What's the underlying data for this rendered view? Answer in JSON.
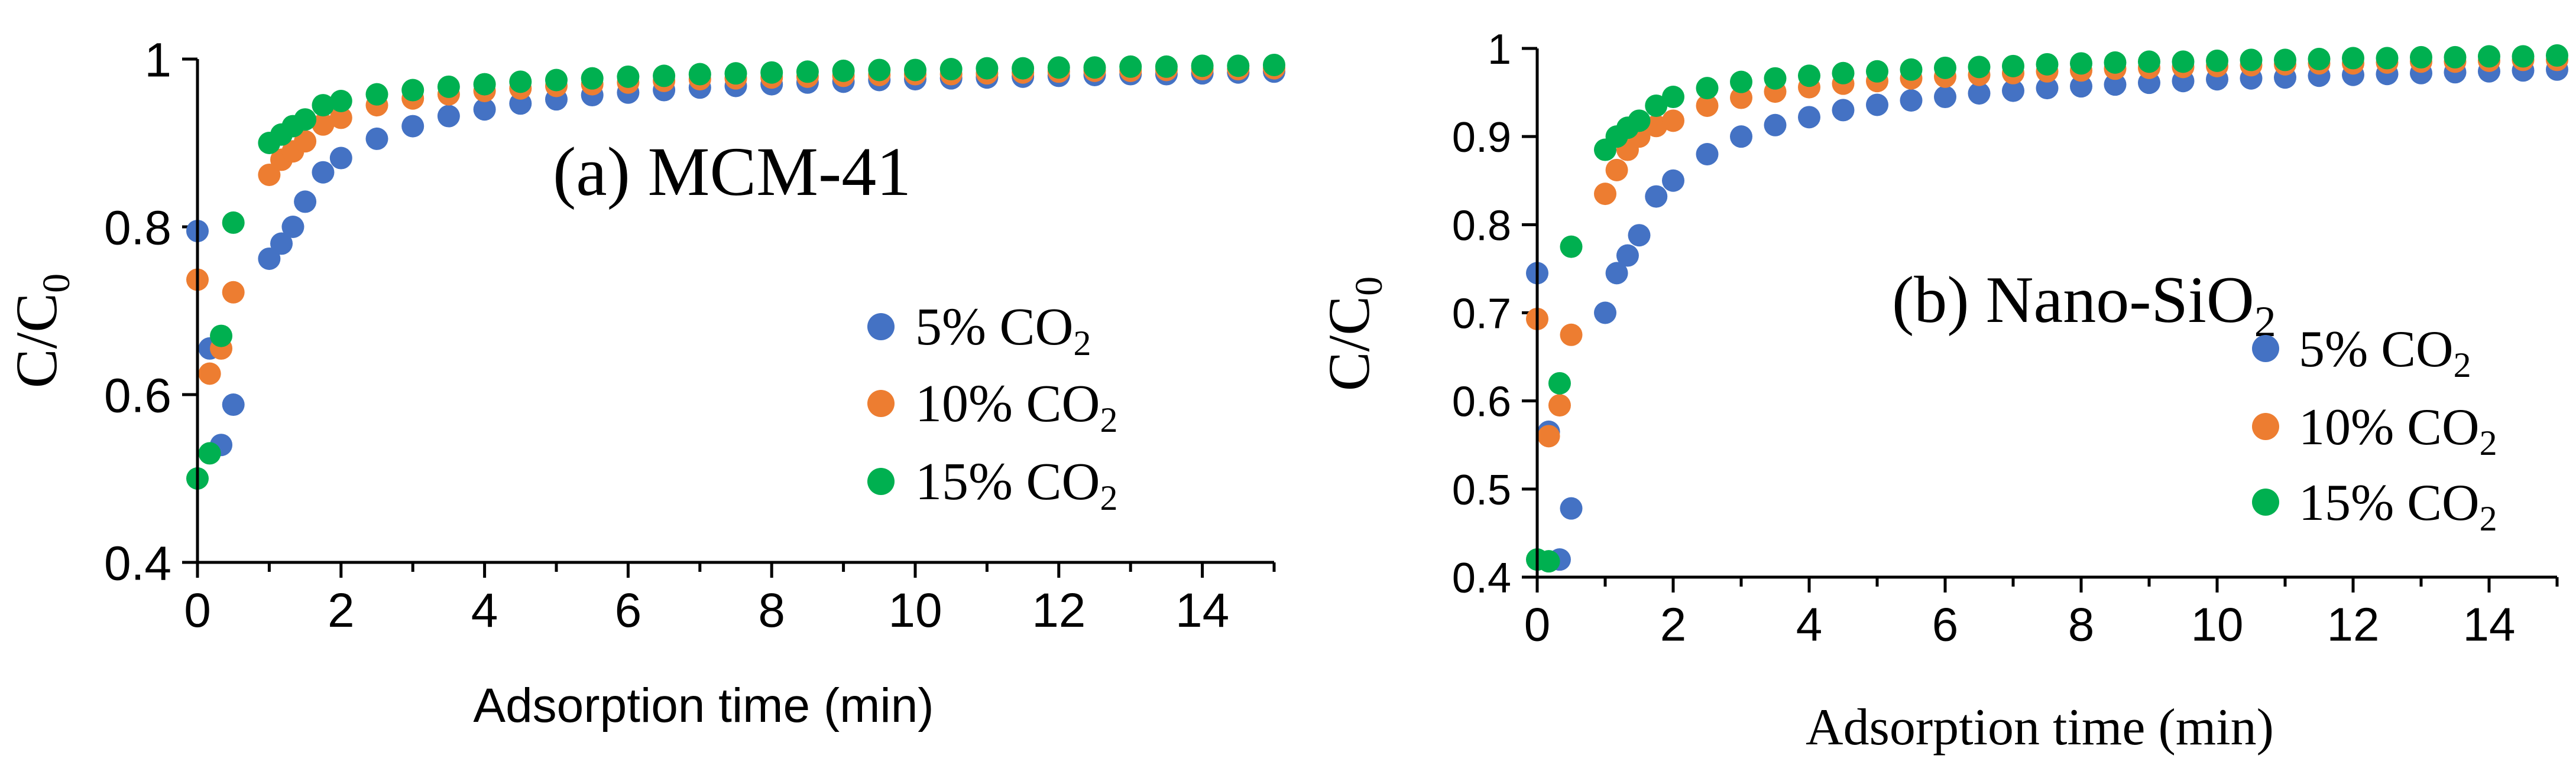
{
  "chart_data": [
    {
      "type": "scatter",
      "title": "(a) MCM-41",
      "xlabel": "Adsorption time (min)",
      "ylabel": "C/C0",
      "xlim": [
        0,
        15
      ],
      "ylim": [
        0.4,
        1.0
      ],
      "xticks": [
        "0",
        "2",
        "4",
        "6",
        "8",
        "10",
        "12",
        "14"
      ],
      "yticks": [
        "0.4",
        "0.6",
        "0.8",
        "1"
      ],
      "legend_position": "right",
      "series": [
        {
          "name": "5% CO2",
          "color": "#4472C4",
          "x": [
            0.0,
            0.17,
            0.33,
            0.5,
            1.0,
            1.17,
            1.33,
            1.5,
            1.75,
            2.0,
            2.5,
            3.0,
            3.5,
            4.0,
            4.5,
            5.0,
            5.5,
            6.0,
            6.5,
            7.0,
            7.5,
            8.0,
            8.5,
            9.0,
            9.5,
            10.0,
            10.5,
            11.0,
            11.5,
            12.0,
            12.5,
            13.0,
            13.5,
            14.0,
            14.5,
            15.0
          ],
          "y": [
            0.795,
            0.655,
            0.54,
            0.588,
            0.762,
            0.78,
            0.8,
            0.83,
            0.865,
            0.882,
            0.905,
            0.92,
            0.932,
            0.94,
            0.947,
            0.952,
            0.957,
            0.96,
            0.963,
            0.966,
            0.968,
            0.97,
            0.972,
            0.973,
            0.975,
            0.976,
            0.977,
            0.978,
            0.979,
            0.98,
            0.981,
            0.982,
            0.982,
            0.983,
            0.984,
            0.985
          ]
        },
        {
          "name": "10% CO2",
          "color": "#ED7D31",
          "x": [
            0.0,
            0.17,
            0.33,
            0.5,
            1.0,
            1.17,
            1.33,
            1.5,
            1.75,
            2.0,
            2.5,
            3.0,
            3.5,
            4.0,
            4.5,
            5.0,
            5.5,
            6.0,
            6.5,
            7.0,
            7.5,
            8.0,
            8.5,
            9.0,
            9.5,
            10.0,
            10.5,
            11.0,
            11.5,
            12.0,
            12.5,
            13.0,
            13.5,
            14.0,
            14.5,
            15.0
          ],
          "y": [
            0.737,
            0.625,
            0.655,
            0.722,
            0.862,
            0.88,
            0.89,
            0.902,
            0.922,
            0.93,
            0.945,
            0.953,
            0.958,
            0.962,
            0.965,
            0.968,
            0.97,
            0.972,
            0.974,
            0.976,
            0.977,
            0.978,
            0.979,
            0.98,
            0.981,
            0.982,
            0.982,
            0.983,
            0.984,
            0.985,
            0.986,
            0.986,
            0.987,
            0.988,
            0.988,
            0.989
          ]
        },
        {
          "name": "15% CO2",
          "color": "#00B050",
          "x": [
            0.0,
            0.17,
            0.33,
            0.5,
            1.0,
            1.17,
            1.33,
            1.5,
            1.75,
            2.0,
            2.5,
            3.0,
            3.5,
            4.0,
            4.5,
            5.0,
            5.5,
            6.0,
            6.5,
            7.0,
            7.5,
            8.0,
            8.5,
            9.0,
            9.5,
            10.0,
            10.5,
            11.0,
            11.5,
            12.0,
            12.5,
            13.0,
            13.5,
            14.0,
            14.5,
            15.0
          ],
          "y": [
            0.5,
            0.53,
            0.67,
            0.805,
            0.9,
            0.91,
            0.92,
            0.928,
            0.945,
            0.95,
            0.958,
            0.963,
            0.967,
            0.97,
            0.973,
            0.975,
            0.977,
            0.979,
            0.98,
            0.982,
            0.983,
            0.984,
            0.985,
            0.986,
            0.987,
            0.987,
            0.988,
            0.989,
            0.989,
            0.99,
            0.99,
            0.991,
            0.991,
            0.992,
            0.992,
            0.993
          ]
        }
      ]
    },
    {
      "type": "scatter",
      "title": "(b) Nano-SiO2",
      "xlabel": "Adsorption time (min)",
      "ylabel": "C/C0",
      "xlim": [
        0,
        15
      ],
      "ylim": [
        0.4,
        1.0
      ],
      "xticks": [
        "0",
        "2",
        "4",
        "6",
        "8",
        "10",
        "12",
        "14"
      ],
      "yticks": [
        "0.4",
        "0.5",
        "0.6",
        "0.7",
        "0.8",
        "0.9",
        "1"
      ],
      "legend_position": "right",
      "series": [
        {
          "name": "5% CO2",
          "color": "#4472C4",
          "x": [
            0.0,
            0.17,
            0.33,
            0.5,
            1.0,
            1.17,
            1.33,
            1.5,
            1.75,
            2.0,
            2.5,
            3.0,
            3.5,
            4.0,
            4.5,
            5.0,
            5.5,
            6.0,
            6.5,
            7.0,
            7.5,
            8.0,
            8.5,
            9.0,
            9.5,
            10.0,
            10.5,
            11.0,
            11.5,
            12.0,
            12.5,
            13.0,
            13.5,
            14.0,
            14.5,
            15.0
          ],
          "y": [
            0.745,
            0.565,
            0.42,
            0.478,
            0.7,
            0.745,
            0.765,
            0.788,
            0.832,
            0.85,
            0.88,
            0.9,
            0.913,
            0.922,
            0.93,
            0.936,
            0.941,
            0.945,
            0.949,
            0.952,
            0.955,
            0.957,
            0.959,
            0.961,
            0.963,
            0.965,
            0.966,
            0.967,
            0.969,
            0.97,
            0.971,
            0.972,
            0.973,
            0.974,
            0.975,
            0.976
          ]
        },
        {
          "name": "10% CO2",
          "color": "#ED7D31",
          "x": [
            0.0,
            0.17,
            0.33,
            0.5,
            1.0,
            1.17,
            1.33,
            1.5,
            1.75,
            2.0,
            2.5,
            3.0,
            3.5,
            4.0,
            4.5,
            5.0,
            5.5,
            6.0,
            6.5,
            7.0,
            7.5,
            8.0,
            8.5,
            9.0,
            9.5,
            10.0,
            10.5,
            11.0,
            11.5,
            12.0,
            12.5,
            13.0,
            13.5,
            14.0,
            14.5,
            15.0
          ],
          "y": [
            0.693,
            0.56,
            0.595,
            0.675,
            0.835,
            0.862,
            0.885,
            0.9,
            0.912,
            0.918,
            0.935,
            0.944,
            0.951,
            0.956,
            0.96,
            0.963,
            0.966,
            0.968,
            0.97,
            0.972,
            0.974,
            0.975,
            0.977,
            0.978,
            0.979,
            0.98,
            0.981,
            0.982,
            0.983,
            0.983,
            0.984,
            0.985,
            0.985,
            0.986,
            0.987,
            0.987
          ]
        },
        {
          "name": "15% CO2",
          "color": "#00B050",
          "x": [
            0.0,
            0.17,
            0.33,
            0.5,
            1.0,
            1.17,
            1.33,
            1.5,
            1.75,
            2.0,
            2.5,
            3.0,
            3.5,
            4.0,
            4.5,
            5.0,
            5.5,
            6.0,
            6.5,
            7.0,
            7.5,
            8.0,
            8.5,
            9.0,
            9.5,
            10.0,
            10.5,
            11.0,
            11.5,
            12.0,
            12.5,
            13.0,
            13.5,
            14.0,
            14.5,
            15.0
          ],
          "y": [
            0.42,
            0.418,
            0.62,
            0.775,
            0.885,
            0.9,
            0.91,
            0.918,
            0.935,
            0.945,
            0.955,
            0.962,
            0.966,
            0.969,
            0.972,
            0.974,
            0.976,
            0.978,
            0.979,
            0.98,
            0.982,
            0.983,
            0.984,
            0.985,
            0.985,
            0.986,
            0.987,
            0.987,
            0.988,
            0.989,
            0.989,
            0.99,
            0.99,
            0.991,
            0.991,
            0.992
          ]
        }
      ]
    }
  ],
  "panels": [
    {
      "title_main": "(a) MCM-41",
      "title_sub": "",
      "xlabel": "Adsorption time (min)",
      "ylabel_main": "C/C",
      "ylabel_sub": "0",
      "legend": [
        {
          "main": "5% CO",
          "sub": "2"
        },
        {
          "main": "10% CO",
          "sub": "2"
        },
        {
          "main": "15% CO",
          "sub": "2"
        }
      ]
    },
    {
      "title_main": "(b) Nano-SiO",
      "title_sub": "2",
      "xlabel": "Adsorption time (min)",
      "ylabel_main": "C/C",
      "ylabel_sub": "0",
      "legend": [
        {
          "main": "5% CO",
          "sub": "2"
        },
        {
          "main": "10% CO",
          "sub": "2"
        },
        {
          "main": "15% CO",
          "sub": "2"
        }
      ]
    }
  ]
}
